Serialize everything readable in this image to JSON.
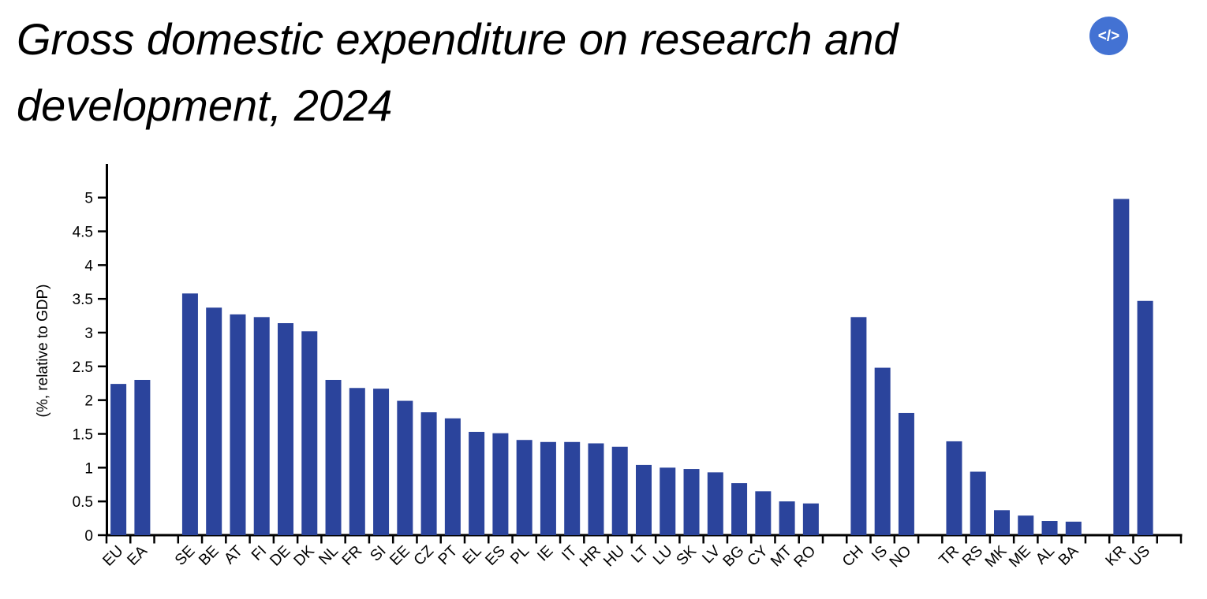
{
  "header": {
    "title": "Gross domestic expenditure on research and development, 2024",
    "embed_icon": {
      "symbol": "</>",
      "bg_color": "#4372d3",
      "fg_color": "#ffffff"
    }
  },
  "chart_data": {
    "type": "bar",
    "title": "Gross domestic expenditure on research and development, 2024",
    "xlabel": "",
    "ylabel": "(%, relative to GDP)",
    "ylim": [
      0,
      5.5
    ],
    "yticks": [
      0,
      0.5,
      1,
      1.5,
      2,
      2.5,
      3,
      3.5,
      4,
      4.5,
      5
    ],
    "grid": "off",
    "legend": "none",
    "bar_color": "#2b449c",
    "axis_color": "#000000",
    "categories": [
      "EU",
      "EA",
      "SE",
      "BE",
      "AT",
      "FI",
      "DE",
      "DK",
      "NL",
      "FR",
      "SI",
      "EE",
      "CZ",
      "PT",
      "EL",
      "ES",
      "PL",
      "IE",
      "IT",
      "HR",
      "HU",
      "LT",
      "LU",
      "SK",
      "LV",
      "BG",
      "CY",
      "MT",
      "RO",
      "CH",
      "IS",
      "NO",
      "TR",
      "RS",
      "MK",
      "ME",
      "AL",
      "BA",
      "KR",
      "US"
    ],
    "values": [
      2.24,
      2.3,
      3.58,
      3.37,
      3.27,
      3.23,
      3.14,
      3.02,
      2.3,
      2.18,
      2.17,
      1.99,
      1.82,
      1.73,
      1.53,
      1.51,
      1.41,
      1.38,
      1.38,
      1.36,
      1.31,
      1.04,
      1.0,
      0.98,
      0.93,
      0.77,
      0.65,
      0.5,
      0.47,
      3.23,
      2.48,
      1.81,
      1.39,
      0.94,
      0.37,
      0.29,
      0.21,
      0.2,
      4.98,
      3.47
    ],
    "gaps_after": [
      "EA",
      "RO",
      "NO",
      "BA",
      "US"
    ]
  }
}
